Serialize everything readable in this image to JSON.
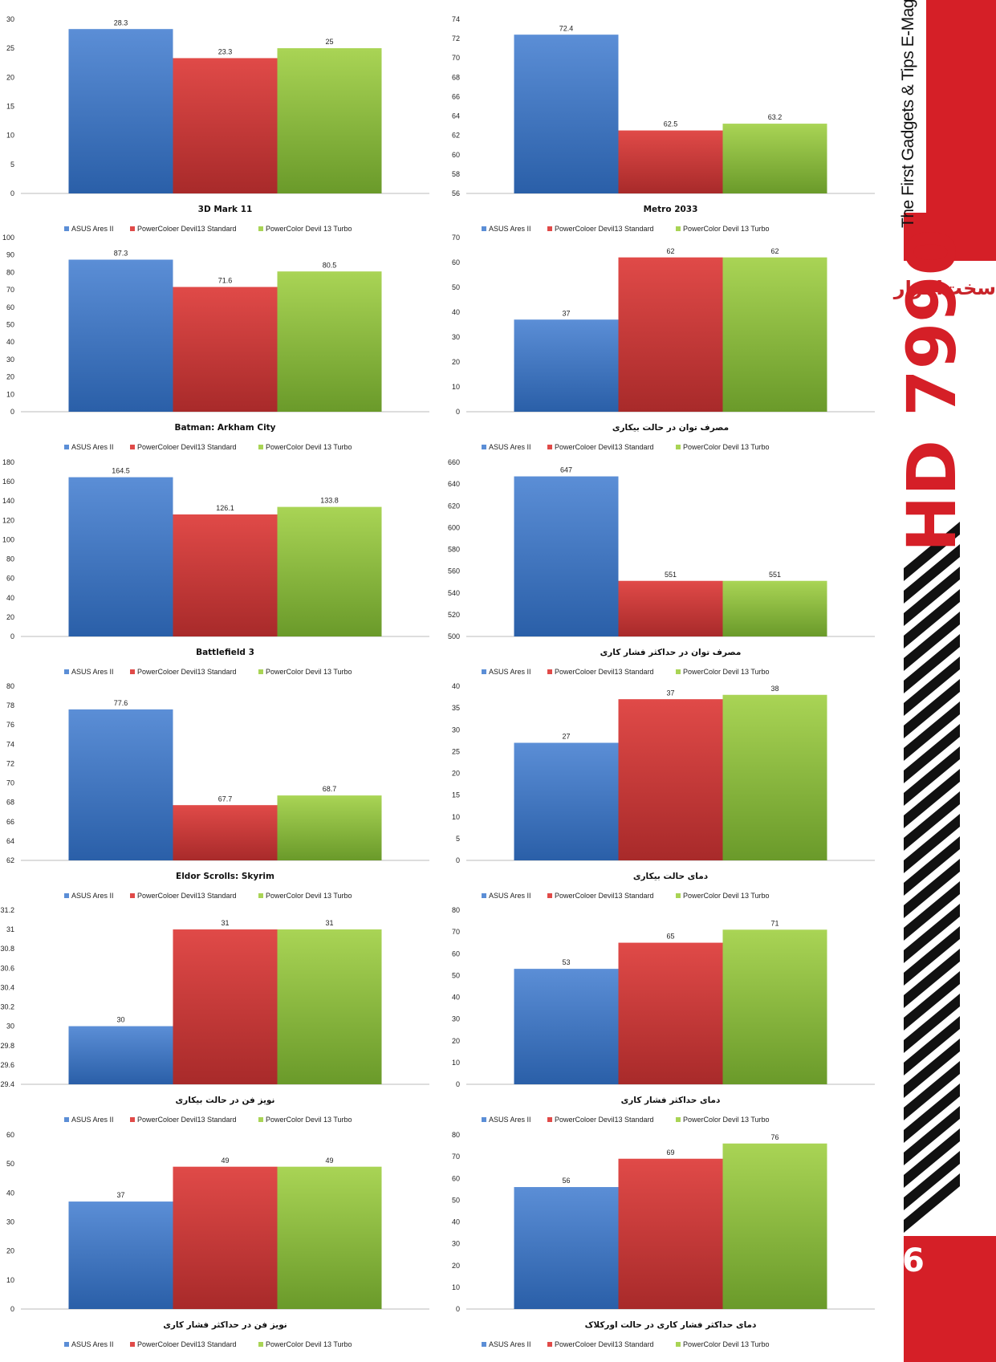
{
  "legend": [
    "ASUS Ares II",
    "PowerColoer Devil13  Standard",
    "PowerColor Devil 13 Turbo"
  ],
  "colors": {
    "blue": [
      "#2a5fa8",
      "#5b8ed6"
    ],
    "red": [
      "#a82a2a",
      "#e04a48"
    ],
    "green": [
      "#6a9a2a",
      "#a9d455"
    ],
    "accent": "#d51f27"
  },
  "sidebar": {
    "brand_text": "The First Gadgets & Tips E-Mag",
    "logo_text": "سخت‌افزار",
    "product": "HD 7990",
    "page_number": "6"
  },
  "chart_data": [
    {
      "type": "bar",
      "title": "3D Mark 11",
      "categories": [
        "3D Mark 11"
      ],
      "series": [
        {
          "name": "ASUS Ares II",
          "values": [
            28.3
          ]
        },
        {
          "name": "PowerColoer Devil13  Standard",
          "values": [
            23.3
          ]
        },
        {
          "name": "PowerColor Devil 13 Turbo",
          "values": [
            25
          ]
        }
      ],
      "ylim": [
        0,
        30
      ],
      "ticks": [
        "0",
        "5",
        "10",
        "15",
        "20",
        "25",
        "30"
      ],
      "labels": [
        "28.3",
        "23.3",
        "25"
      ]
    },
    {
      "type": "bar",
      "title": "Metro 2033",
      "categories": [
        "Metro 2033"
      ],
      "series": [
        {
          "name": "ASUS Ares II",
          "values": [
            72.4
          ]
        },
        {
          "name": "PowerColoer Devil13  Standard",
          "values": [
            62.5
          ]
        },
        {
          "name": "PowerColor Devil 13 Turbo",
          "values": [
            63.2
          ]
        }
      ],
      "ylim": [
        56,
        74
      ],
      "ticks": [
        "56",
        "58",
        "60",
        "62",
        "64",
        "66",
        "68",
        "70",
        "72",
        "74"
      ],
      "labels": [
        "72.4",
        "62.5",
        "63.2"
      ]
    },
    {
      "type": "bar",
      "title": "Batman: Arkham City",
      "categories": [
        "Batman: Arkham City"
      ],
      "series": [
        {
          "name": "ASUS Ares II",
          "values": [
            87.3
          ]
        },
        {
          "name": "PowerColoer Devil13  Standard",
          "values": [
            71.6
          ]
        },
        {
          "name": "PowerColor Devil 13 Turbo",
          "values": [
            80.5
          ]
        }
      ],
      "ylim": [
        0,
        100
      ],
      "ticks": [
        "0",
        "10",
        "20",
        "30",
        "40",
        "50",
        "60",
        "70",
        "80",
        "90",
        "100"
      ],
      "labels": [
        "87.3",
        "71.6",
        "80.5"
      ]
    },
    {
      "type": "bar",
      "title": "مصرف توان در حالت بیکاری",
      "categories": [
        "مصرف توان در حالت بیکاری"
      ],
      "series": [
        {
          "name": "ASUS Ares II",
          "values": [
            37
          ]
        },
        {
          "name": "PowerColoer Devil13  Standard",
          "values": [
            62
          ]
        },
        {
          "name": "PowerColor Devil 13 Turbo",
          "values": [
            62
          ]
        }
      ],
      "ylim": [
        0,
        70
      ],
      "ticks": [
        "0",
        "10",
        "20",
        "30",
        "40",
        "50",
        "60",
        "70"
      ],
      "labels": [
        "37",
        "62",
        "62"
      ]
    },
    {
      "type": "bar",
      "title": "Battlefield 3",
      "categories": [
        "Battlefield 3"
      ],
      "series": [
        {
          "name": "ASUS Ares II",
          "values": [
            164.5
          ]
        },
        {
          "name": "PowerColoer Devil13  Standard",
          "values": [
            126.1
          ]
        },
        {
          "name": "PowerColor Devil 13 Turbo",
          "values": [
            133.8
          ]
        }
      ],
      "ylim": [
        0,
        180
      ],
      "ticks": [
        "0",
        "20",
        "40",
        "60",
        "80",
        "100",
        "120",
        "140",
        "160",
        "180"
      ],
      "labels": [
        "164.5",
        "126.1",
        "133.8"
      ]
    },
    {
      "type": "bar",
      "title": "مصرف توان در حداکثر فشار کاری",
      "categories": [
        "مصرف توان در حداکثر فشار کاری"
      ],
      "series": [
        {
          "name": "ASUS Ares II",
          "values": [
            647
          ]
        },
        {
          "name": "PowerColoer Devil13  Standard",
          "values": [
            551
          ]
        },
        {
          "name": "PowerColor Devil 13 Turbo",
          "values": [
            551
          ]
        }
      ],
      "ylim": [
        500,
        660
      ],
      "ticks": [
        "500",
        "520",
        "540",
        "560",
        "580",
        "600",
        "620",
        "640",
        "660"
      ],
      "labels": [
        "647",
        "551",
        "551"
      ]
    },
    {
      "type": "bar",
      "title": "Eldor Scrolls: Skyrim",
      "categories": [
        "Eldor Scrolls: Skyrim"
      ],
      "series": [
        {
          "name": "ASUS Ares II",
          "values": [
            77.6
          ]
        },
        {
          "name": "PowerColoer Devil13  Standard",
          "values": [
            67.7
          ]
        },
        {
          "name": "PowerColor Devil 13 Turbo",
          "values": [
            68.7
          ]
        }
      ],
      "ylim": [
        62,
        80
      ],
      "ticks": [
        "62",
        "64",
        "66",
        "68",
        "70",
        "72",
        "74",
        "76",
        "78",
        "80"
      ],
      "labels": [
        "77.6",
        "67.7",
        "68.7"
      ]
    },
    {
      "type": "bar",
      "title": "دمای حالت بیکاری",
      "categories": [
        "دمای حالت بیکاری"
      ],
      "series": [
        {
          "name": "ASUS Ares II",
          "values": [
            27
          ]
        },
        {
          "name": "PowerColoer Devil13  Standard",
          "values": [
            37
          ]
        },
        {
          "name": "PowerColor Devil 13 Turbo",
          "values": [
            38
          ]
        }
      ],
      "ylim": [
        0,
        40
      ],
      "ticks": [
        "0",
        "5",
        "10",
        "15",
        "20",
        "25",
        "30",
        "35",
        "40"
      ],
      "labels": [
        "27",
        "37",
        "38"
      ]
    },
    {
      "type": "bar",
      "title": "نویز فن در حالت بیکاری",
      "categories": [
        "نویز فن در حالت بیکاری"
      ],
      "series": [
        {
          "name": "ASUS Ares II",
          "values": [
            30
          ]
        },
        {
          "name": "PowerColoer Devil13  Standard",
          "values": [
            31
          ]
        },
        {
          "name": "PowerColor Devil 13 Turbo",
          "values": [
            31
          ]
        }
      ],
      "ylim": [
        29.4,
        31.2
      ],
      "ticks": [
        "29.4",
        "29.6",
        "29.8",
        "30",
        "30.2",
        "30.4",
        "30.6",
        "30.8",
        "31",
        "31.2"
      ],
      "labels": [
        "30",
        "31",
        "31"
      ]
    },
    {
      "type": "bar",
      "title": "دمای حداکثر فشار کاری",
      "categories": [
        "دمای حداکثر فشار کاری"
      ],
      "series": [
        {
          "name": "ASUS Ares II",
          "values": [
            53
          ]
        },
        {
          "name": "PowerColoer Devil13  Standard",
          "values": [
            65
          ]
        },
        {
          "name": "PowerColor Devil 13 Turbo",
          "values": [
            71
          ]
        }
      ],
      "ylim": [
        0,
        80
      ],
      "ticks": [
        "0",
        "10",
        "20",
        "30",
        "40",
        "50",
        "60",
        "70",
        "80"
      ],
      "labels": [
        "53",
        "65",
        "71"
      ]
    },
    {
      "type": "bar",
      "title": "نویز فن در حداکثر فشار کاری",
      "categories": [
        "نویز فن در حداکثر فشار کاری"
      ],
      "series": [
        {
          "name": "ASUS Ares II",
          "values": [
            37
          ]
        },
        {
          "name": "PowerColoer Devil13  Standard",
          "values": [
            49
          ]
        },
        {
          "name": "PowerColor Devil 13 Turbo",
          "values": [
            49
          ]
        }
      ],
      "ylim": [
        0,
        60
      ],
      "ticks": [
        "0",
        "10",
        "20",
        "30",
        "40",
        "50",
        "60"
      ],
      "labels": [
        "37",
        "49",
        "49"
      ]
    },
    {
      "type": "bar",
      "title": "دمای حداکثر فشار کاری در حالت اورکلاک",
      "categories": [
        "دمای حداکثر فشار کاری در حالت اورکلاک"
      ],
      "series": [
        {
          "name": "ASUS Ares II",
          "values": [
            56
          ]
        },
        {
          "name": "PowerColoer Devil13  Standard",
          "values": [
            69
          ]
        },
        {
          "name": "PowerColor Devil 13 Turbo",
          "values": [
            76
          ]
        }
      ],
      "ylim": [
        0,
        80
      ],
      "ticks": [
        "0",
        "10",
        "20",
        "30",
        "40",
        "50",
        "60",
        "70",
        "80"
      ],
      "labels": [
        "56",
        "69",
        "76"
      ]
    }
  ]
}
